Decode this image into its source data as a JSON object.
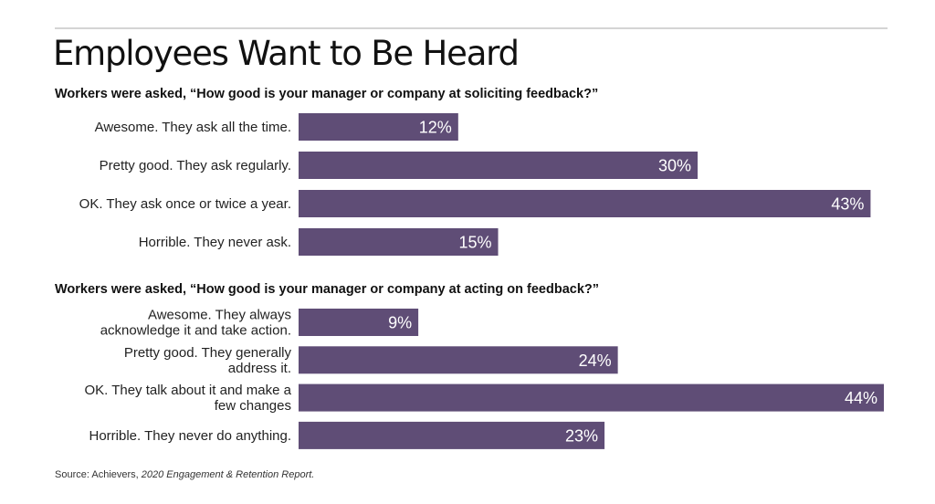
{
  "title": "Employees Want to Be Heard",
  "colors": {
    "bar": "#5f4d76",
    "value_text": "#ffffff",
    "rule": "#d4d4d4"
  },
  "chart_data": [
    {
      "type": "bar",
      "orientation": "horizontal",
      "title": "Workers were asked, “How good is your manager or company at soliciting feedback?”",
      "categories": [
        [
          "Awesome. They ask all the time."
        ],
        [
          "Pretty good. They ask regularly."
        ],
        [
          "OK. They ask once or twice a year."
        ],
        [
          "Horrible. They never ask."
        ]
      ],
      "values": [
        12,
        30,
        43,
        15
      ],
      "value_labels": [
        "12%",
        "30%",
        "43%",
        "15%"
      ],
      "xlim": [
        0,
        44
      ]
    },
    {
      "type": "bar",
      "orientation": "horizontal",
      "title": "Workers were asked, “How good is your manager or company at acting on feedback?”",
      "categories": [
        [
          "Awesome. They always",
          "acknowledge it and take action."
        ],
        [
          "Pretty good. They generally",
          "address it."
        ],
        [
          "OK. They talk about it and make a",
          "few changes"
        ],
        [
          "Horrible. They never do anything."
        ]
      ],
      "values": [
        9,
        24,
        44,
        23
      ],
      "value_labels": [
        "9%",
        "24%",
        "44%",
        "23%"
      ],
      "xlim": [
        0,
        44
      ]
    }
  ],
  "source": {
    "prefix": "Source: Achievers, ",
    "report": "2020 Engagement & Retention Report."
  }
}
